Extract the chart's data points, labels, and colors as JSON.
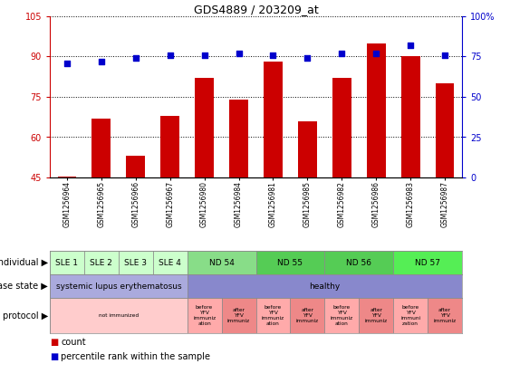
{
  "title": "GDS4889 / 203209_at",
  "samples": [
    "GSM1256964",
    "GSM1256965",
    "GSM1256966",
    "GSM1256967",
    "GSM1256980",
    "GSM1256984",
    "GSM1256981",
    "GSM1256985",
    "GSM1256982",
    "GSM1256986",
    "GSM1256983",
    "GSM1256987"
  ],
  "counts": [
    45.5,
    67,
    53,
    68,
    82,
    74,
    88,
    66,
    82,
    95,
    90,
    80
  ],
  "percentiles": [
    71,
    72,
    74,
    76,
    76,
    77,
    76,
    74,
    77,
    77,
    82,
    76
  ],
  "ylim_left": [
    45,
    105
  ],
  "ylim_right": [
    0,
    100
  ],
  "yticks_left": [
    45,
    60,
    75,
    90,
    105
  ],
  "yticks_right": [
    0,
    25,
    50,
    75,
    100
  ],
  "ytick_labels_right": [
    "0",
    "25",
    "50",
    "75",
    "100%"
  ],
  "bar_color": "#cc0000",
  "dot_color": "#0000cc",
  "left_tick_color": "#cc0000",
  "right_tick_color": "#0000cc",
  "individual_spans": [
    {
      "label": "SLE 1",
      "start": 0,
      "end": 1,
      "color": "#ccffcc"
    },
    {
      "label": "SLE 2",
      "start": 1,
      "end": 2,
      "color": "#ccffcc"
    },
    {
      "label": "SLE 3",
      "start": 2,
      "end": 3,
      "color": "#ccffcc"
    },
    {
      "label": "SLE 4",
      "start": 3,
      "end": 4,
      "color": "#ccffcc"
    },
    {
      "label": "ND 54",
      "start": 4,
      "end": 6,
      "color": "#88dd88"
    },
    {
      "label": "ND 55",
      "start": 6,
      "end": 8,
      "color": "#55cc55"
    },
    {
      "label": "ND 56",
      "start": 8,
      "end": 10,
      "color": "#55cc55"
    },
    {
      "label": "ND 57",
      "start": 10,
      "end": 12,
      "color": "#55ee55"
    }
  ],
  "disease_spans": [
    {
      "label": "systemic lupus erythematosus",
      "start": 0,
      "end": 4,
      "color": "#aaaadd"
    },
    {
      "label": "healthy",
      "start": 4,
      "end": 12,
      "color": "#8888cc"
    }
  ],
  "protocol_spans": [
    {
      "label": "not immunized",
      "start": 0,
      "end": 4,
      "color": "#ffcccc"
    },
    {
      "label": "before\nYFV\nimmuniz\nation",
      "start": 4,
      "end": 5,
      "color": "#ffaaaa"
    },
    {
      "label": "after\nYFV\nimmuniz",
      "start": 5,
      "end": 6,
      "color": "#ee8888"
    },
    {
      "label": "before\nYFV\nimmuniz\nation",
      "start": 6,
      "end": 7,
      "color": "#ffaaaa"
    },
    {
      "label": "after\nYFV\nimmuniz",
      "start": 7,
      "end": 8,
      "color": "#ee8888"
    },
    {
      "label": "before\nYFV\nimmuniz\nation",
      "start": 8,
      "end": 9,
      "color": "#ffaaaa"
    },
    {
      "label": "after\nYFV\nimmuniz",
      "start": 9,
      "end": 10,
      "color": "#ee8888"
    },
    {
      "label": "before\nYFV\nimmuni\nzation",
      "start": 10,
      "end": 11,
      "color": "#ffaaaa"
    },
    {
      "label": "after\nYFV\nimmuniz",
      "start": 11,
      "end": 12,
      "color": "#ee8888"
    }
  ],
  "row_labels": [
    "individual",
    "disease state",
    "protocol"
  ],
  "row_arrow": "▶",
  "legend": [
    {
      "color": "#cc0000",
      "label": "count"
    },
    {
      "color": "#0000cc",
      "label": "percentile rank within the sample"
    }
  ]
}
